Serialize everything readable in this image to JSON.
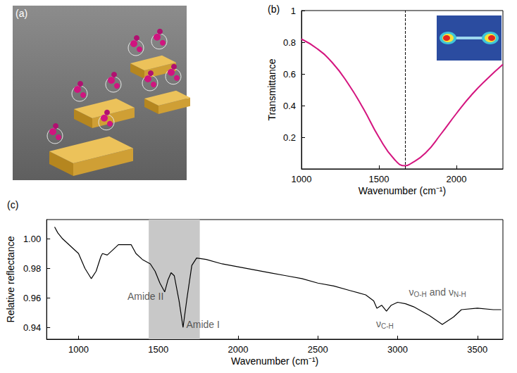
{
  "image_panel": {
    "title": "(a)"
  },
  "chart_data": [
    {
      "type": "line",
      "title": "(b)",
      "x_label": "Wavenumber (cm⁻¹)",
      "y_label": "Transmittance",
      "x": [
        1000,
        1100,
        1200,
        1300,
        1400,
        1500,
        1600,
        1670,
        1700,
        1800,
        1900,
        2000,
        2100,
        2200,
        2300
      ],
      "values": [
        0.82,
        0.76,
        0.67,
        0.54,
        0.38,
        0.2,
        0.06,
        0.02,
        0.03,
        0.1,
        0.22,
        0.35,
        0.47,
        0.57,
        0.66
      ],
      "color": "#d4157f",
      "line_style": "solid",
      "xlim": [
        1000,
        2300
      ],
      "xticks": [
        1000,
        1500,
        2000
      ],
      "ylim": [
        0,
        1
      ],
      "yticks": [
        0.2,
        0.4,
        0.6,
        0.8,
        1
      ],
      "grid": false,
      "vline": 1670
    },
    {
      "type": "line",
      "title": "(c)",
      "x_label": "Wavenumber (cm⁻¹)",
      "y_label": "Relative reflectance",
      "x": [
        850,
        870,
        900,
        950,
        1000,
        1040,
        1080,
        1110,
        1140,
        1150,
        1180,
        1210,
        1250,
        1300,
        1330,
        1360,
        1400,
        1450,
        1480,
        1510,
        1540,
        1560,
        1580,
        1600,
        1630,
        1655,
        1680,
        1710,
        1740,
        1800,
        1900,
        2000,
        2100,
        2200,
        2300,
        2400,
        2500,
        2600,
        2700,
        2800,
        2850,
        2870,
        2900,
        2930,
        2960,
        3000,
        3050,
        3100,
        3200,
        3280,
        3350,
        3400,
        3500,
        3600,
        3650
      ],
      "values": [
        1.008,
        1.004,
        1.0,
        0.995,
        0.99,
        0.98,
        0.973,
        0.978,
        0.988,
        0.99,
        0.989,
        0.992,
        0.996,
        0.996,
        0.996,
        0.99,
        0.986,
        0.983,
        0.978,
        0.97,
        0.964,
        0.972,
        0.977,
        0.975,
        0.958,
        0.94,
        0.96,
        0.982,
        0.987,
        0.986,
        0.983,
        0.981,
        0.979,
        0.977,
        0.975,
        0.973,
        0.97,
        0.968,
        0.965,
        0.962,
        0.958,
        0.953,
        0.955,
        0.951,
        0.955,
        0.957,
        0.956,
        0.954,
        0.948,
        0.942,
        0.947,
        0.952,
        0.953,
        0.952,
        0.952
      ],
      "color": "#000000",
      "line_style": "solid",
      "xlim": [
        800,
        3660
      ],
      "xticks": [
        1000,
        1500,
        2000,
        2500,
        3000,
        3500
      ],
      "ylim": [
        0.932,
        1.013
      ],
      "yticks": [
        0.94,
        0.96,
        0.98,
        {
          "value": 1,
          "label": "1.00"
        }
      ],
      "grid": false,
      "shaded_band": [
        1440,
        1760
      ],
      "annotations": [
        {
          "x": 1420,
          "y": 0.961,
          "parts": [
            {
              "text": "Amide II"
            }
          ]
        },
        {
          "x": 1780,
          "y": 0.942,
          "parts": [
            {
              "text": "Amide I"
            }
          ]
        },
        {
          "x": 2920,
          "y": 0.9425,
          "parts": [
            {
              "text": "ν",
              "sub": "C-H"
            }
          ]
        },
        {
          "x": 3250,
          "y": 0.964,
          "parts": [
            {
              "text": "ν",
              "sub": "O-H"
            },
            {
              "text": " and ν",
              "sub": "N-H"
            }
          ]
        }
      ]
    }
  ]
}
